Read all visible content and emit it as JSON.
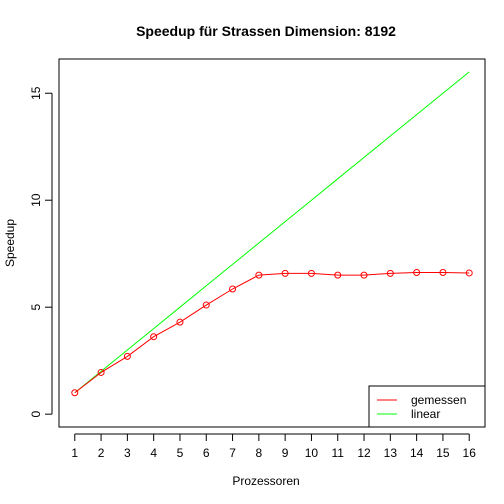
{
  "chart_data": {
    "type": "line",
    "title": "Speedup für Strassen Dimension: 8192",
    "xlabel": "Prozessoren",
    "ylabel": "Speedup",
    "xlim": [
      0.4,
      16.6
    ],
    "ylim": [
      -0.6,
      16.6
    ],
    "xticks": [
      1,
      2,
      3,
      4,
      5,
      6,
      7,
      8,
      9,
      10,
      11,
      12,
      13,
      14,
      15,
      16
    ],
    "yticks": [
      0,
      5,
      10,
      15
    ],
    "grid": false,
    "legend_position": "bottom-right",
    "x": [
      1,
      2,
      3,
      4,
      5,
      6,
      7,
      8,
      9,
      10,
      11,
      12,
      13,
      14,
      15,
      16
    ],
    "series": [
      {
        "name": "gemessen",
        "color": "#ff0000",
        "markers": "open-circle",
        "values": [
          1.0,
          1.95,
          2.7,
          3.62,
          4.3,
          5.1,
          5.85,
          6.5,
          6.58,
          6.58,
          6.5,
          6.5,
          6.58,
          6.62,
          6.62,
          6.6
        ]
      },
      {
        "name": "linear",
        "color": "#00ff00",
        "markers": "none",
        "values": [
          1,
          2,
          3,
          4,
          5,
          6,
          7,
          8,
          9,
          10,
          11,
          12,
          13,
          14,
          15,
          16
        ]
      }
    ]
  }
}
